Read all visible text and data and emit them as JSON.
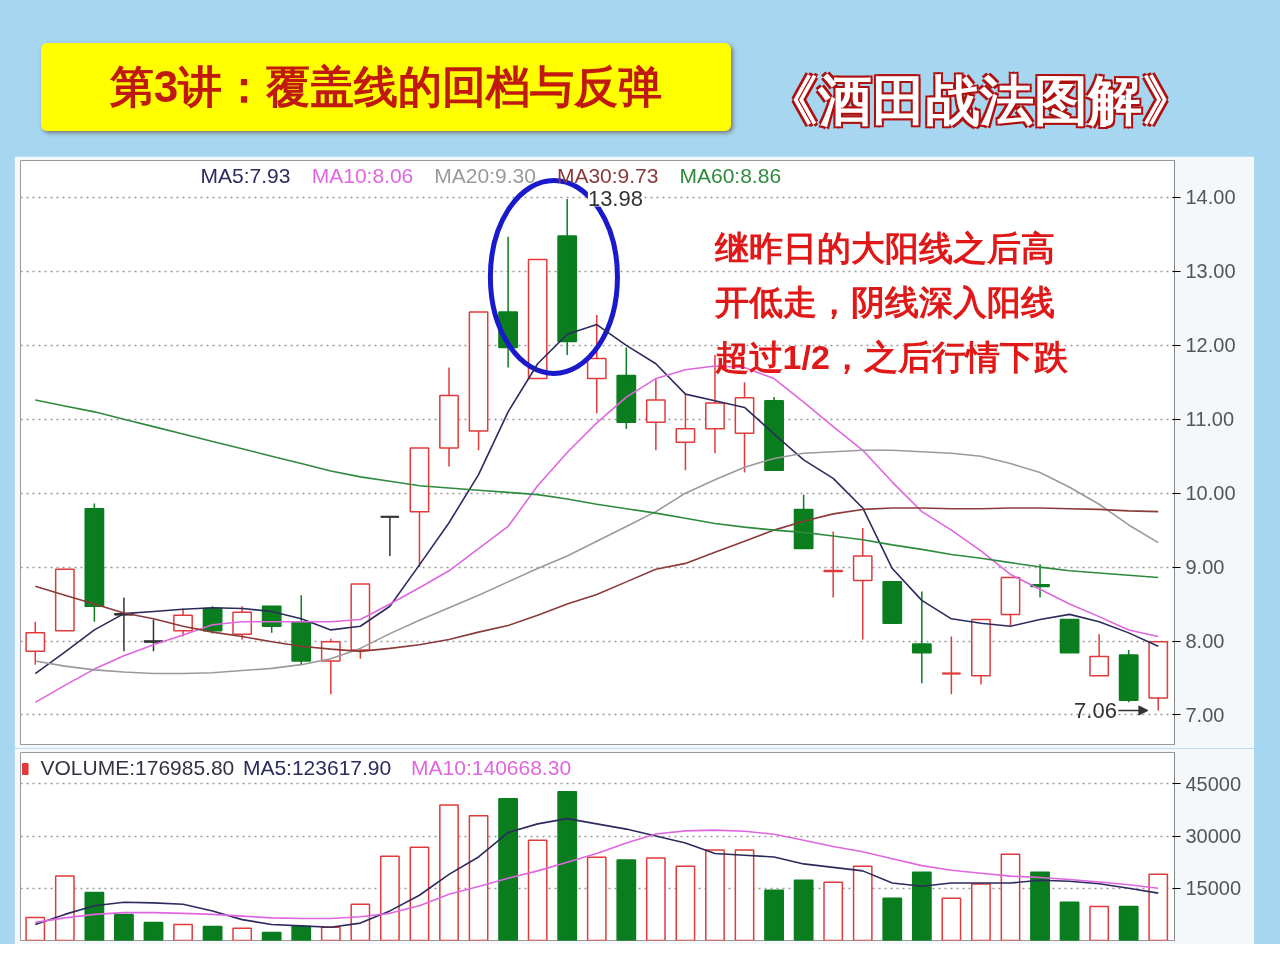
{
  "chart_data": [
    {
      "type": "candlestick",
      "title": "第3讲：覆盖线的回档与反弹",
      "subtitle": "《酒田战法图解》",
      "categories": [
        null,
        null,
        null,
        null,
        null,
        null,
        null,
        null,
        null,
        null,
        null,
        null,
        null,
        null,
        null,
        null,
        null,
        null,
        null,
        null,
        null,
        null,
        null,
        null,
        null,
        null,
        null,
        null,
        null,
        null,
        null,
        null,
        null,
        null,
        null,
        null,
        null,
        null,
        null
      ],
      "ohlc": [
        [
          7.86,
          8.26,
          7.68,
          8.11
        ],
        [
          8.14,
          8.97,
          8.14,
          8.97
        ],
        [
          9.79,
          9.86,
          8.26,
          8.47
        ],
        [
          8.37,
          8.59,
          7.86,
          8.36
        ],
        [
          8.0,
          8.29,
          7.86,
          7.99
        ],
        [
          8.14,
          8.44,
          8.06,
          8.35
        ],
        [
          8.44,
          8.47,
          8.1,
          8.14
        ],
        [
          8.09,
          8.47,
          8.02,
          8.39
        ],
        [
          8.47,
          8.47,
          8.11,
          8.2
        ],
        [
          8.26,
          8.62,
          7.68,
          7.73
        ],
        [
          7.73,
          8.03,
          7.28,
          7.99
        ],
        [
          7.88,
          8.77,
          7.76,
          8.77
        ],
        [
          9.68,
          9.68,
          9.15,
          9.68
        ],
        [
          9.75,
          10.61,
          9.0,
          10.61
        ],
        [
          10.61,
          11.7,
          10.36,
          11.32
        ],
        [
          10.84,
          12.45,
          10.58,
          12.45
        ],
        [
          12.45,
          13.47,
          11.7,
          11.97
        ],
        [
          11.55,
          13.16,
          11.55,
          13.16
        ],
        [
          13.48,
          13.98,
          11.87,
          12.05
        ],
        [
          11.55,
          12.41,
          11.08,
          11.82
        ],
        [
          11.59,
          11.97,
          10.87,
          10.96
        ],
        [
          10.96,
          11.55,
          10.58,
          11.26
        ],
        [
          10.69,
          11.34,
          10.31,
          10.87
        ],
        [
          10.87,
          11.87,
          10.54,
          11.22
        ],
        [
          10.81,
          11.5,
          10.28,
          11.29
        ],
        [
          11.25,
          11.3,
          10.31,
          10.31
        ],
        [
          9.78,
          9.98,
          9.25,
          9.25
        ],
        [
          8.94,
          9.48,
          8.59,
          8.95
        ],
        [
          8.82,
          9.53,
          8.02,
          9.15
        ],
        [
          8.8,
          8.8,
          8.24,
          8.24
        ],
        [
          7.96,
          8.67,
          7.43,
          7.84
        ],
        [
          7.56,
          8.06,
          7.28,
          7.56
        ],
        [
          7.53,
          8.29,
          7.41,
          8.29
        ],
        [
          8.36,
          8.86,
          8.21,
          8.86
        ],
        [
          8.76,
          9.04,
          8.59,
          8.74
        ],
        [
          8.29,
          8.29,
          7.84,
          7.84
        ],
        [
          7.53,
          8.09,
          7.53,
          7.79
        ],
        [
          7.81,
          7.88,
          7.17,
          7.2
        ],
        [
          7.23,
          7.99,
          7.06,
          7.99
        ]
      ],
      "colors": [
        "#e03a3a",
        "#e03a3a",
        "#0a7d1e",
        "#333333",
        "#333333",
        "#e03a3a",
        "#0a7d1e",
        "#e03a3a",
        "#0a7d1e",
        "#0a7d1e",
        "#e03a3a",
        "#e03a3a",
        "#333333",
        "#e03a3a",
        "#e03a3a",
        "#e03a3a",
        "#0a7d1e",
        "#e03a3a",
        "#0a7d1e",
        "#e03a3a",
        "#0a7d1e",
        "#e03a3a",
        "#e03a3a",
        "#e03a3a",
        "#e03a3a",
        "#0a7d1e",
        "#0a7d1e",
        "#e03a3a",
        "#e03a3a",
        "#0a7d1e",
        "#0a7d1e",
        "#e03a3a",
        "#e03a3a",
        "#e03a3a",
        "#0a7d1e",
        "#0a7d1e",
        "#e03a3a",
        "#0a7d1e",
        "#e03a3a"
      ],
      "series": [
        {
          "name": "MA5:7.93",
          "type": "line",
          "color": "#2b2b5e",
          "values": [
            7.56,
            7.85,
            8.15,
            8.37,
            8.4,
            8.43,
            8.45,
            8.44,
            8.4,
            8.3,
            8.15,
            8.2,
            8.47,
            9.03,
            9.6,
            10.25,
            11.1,
            11.75,
            12.15,
            12.28,
            12.0,
            11.75,
            11.34,
            11.25,
            11.16,
            10.8,
            10.45,
            10.2,
            9.8,
            8.98,
            8.55,
            8.3,
            8.24,
            8.2,
            8.29,
            8.36,
            8.26,
            8.11,
            7.93
          ]
        },
        {
          "name": "MA10:8.06",
          "type": "line",
          "color": "#e066e0",
          "values": [
            7.17,
            7.4,
            7.62,
            7.8,
            7.95,
            8.08,
            8.22,
            8.26,
            8.26,
            8.26,
            8.26,
            8.29,
            8.5,
            8.72,
            8.95,
            9.25,
            9.55,
            10.1,
            10.55,
            10.95,
            11.3,
            11.55,
            11.67,
            11.72,
            11.7,
            11.55,
            11.23,
            10.9,
            10.58,
            10.15,
            9.75,
            9.5,
            9.22,
            8.9,
            8.7,
            8.5,
            8.33,
            8.15,
            8.06
          ]
        },
        {
          "name": "MA20:9.30",
          "type": "line",
          "color": "#9a9a9a",
          "values": [
            7.73,
            7.66,
            7.61,
            7.58,
            7.56,
            7.56,
            7.57,
            7.6,
            7.63,
            7.68,
            7.76,
            7.9,
            8.1,
            8.28,
            8.45,
            8.62,
            8.8,
            8.98,
            9.15,
            9.35,
            9.55,
            9.75,
            10.0,
            10.18,
            10.35,
            10.47,
            10.54,
            10.56,
            10.58,
            10.58,
            10.56,
            10.54,
            10.5,
            10.4,
            10.28,
            10.08,
            9.85,
            9.57,
            9.33
          ]
        },
        {
          "name": "MA30:9.73",
          "type": "line",
          "color": "#8b3a3a",
          "values": [
            8.74,
            8.62,
            8.5,
            8.38,
            8.3,
            8.2,
            8.12,
            8.06,
            7.99,
            7.93,
            7.89,
            7.86,
            7.9,
            7.95,
            8.02,
            8.12,
            8.21,
            8.35,
            8.5,
            8.63,
            8.8,
            8.97,
            9.05,
            9.2,
            9.35,
            9.5,
            9.62,
            9.72,
            9.78,
            9.8,
            9.8,
            9.79,
            9.79,
            9.8,
            9.8,
            9.79,
            9.78,
            9.76,
            9.75
          ]
        },
        {
          "name": "MA60:8.86",
          "type": "line",
          "color": "#2e8b3e",
          "values": [
            11.26,
            11.18,
            11.1,
            11.0,
            10.9,
            10.8,
            10.7,
            10.6,
            10.5,
            10.4,
            10.3,
            10.22,
            10.16,
            10.1,
            10.07,
            10.04,
            10.01,
            9.98,
            9.92,
            9.85,
            9.79,
            9.73,
            9.66,
            9.59,
            9.54,
            9.5,
            9.47,
            9.42,
            9.37,
            9.3,
            9.24,
            9.17,
            9.12,
            9.06,
            9.0,
            8.95,
            8.92,
            8.89,
            8.86
          ]
        }
      ],
      "ylim": [
        6.6,
        14.5
      ],
      "yticks": [
        {
          "value": 7,
          "label": "7.00"
        },
        {
          "value": 8,
          "label": "8.00"
        },
        {
          "value": 9,
          "label": "9.00"
        },
        {
          "value": 10,
          "label": "10.00"
        },
        {
          "value": 11,
          "label": "11.00"
        },
        {
          "value": 12,
          "label": "12.00"
        },
        {
          "value": 13,
          "label": "13.00"
        },
        {
          "value": 14,
          "label": "14.00"
        }
      ],
      "grid": "y",
      "legend": "top left",
      "tick_labels": "y",
      "annotations": [
        "继昨日的大阳线之后高",
        "开低走，阴线深入阳线",
        "超过1/2，之后行情下跌",
        "13.98",
        "7.06"
      ]
    },
    {
      "type": "bar",
      "categories": [
        null,
        null,
        null,
        null,
        null,
        null,
        null,
        null,
        null,
        null,
        null,
        null,
        null,
        null,
        null,
        null,
        null,
        null,
        null,
        null,
        null,
        null,
        null,
        null,
        null,
        null,
        null,
        null,
        null,
        null,
        null,
        null,
        null,
        null,
        null,
        null,
        null,
        null,
        null
      ],
      "series": [
        {
          "name": "VOLUME:176985.80",
          "type": "bar",
          "colors": [
            "#e03a3a",
            "#e03a3a",
            "#0a7d1e",
            "#0a7d1e",
            "#0a7d1e",
            "#e03a3a",
            "#0a7d1e",
            "#e03a3a",
            "#0a7d1e",
            "#0a7d1e",
            "#e03a3a",
            "#e03a3a",
            "#e03a3a",
            "#e03a3a",
            "#e03a3a",
            "#e03a3a",
            "#0a7d1e",
            "#e03a3a",
            "#0a7d1e",
            "#e03a3a",
            "#0a7d1e",
            "#e03a3a",
            "#e03a3a",
            "#e03a3a",
            "#e03a3a",
            "#0a7d1e",
            "#0a7d1e",
            "#e03a3a",
            "#e03a3a",
            "#0a7d1e",
            "#0a7d1e",
            "#e03a3a",
            "#e03a3a",
            "#e03a3a",
            "#0a7d1e",
            "#0a7d1e",
            "#e03a3a",
            "#0a7d1e",
            "#e03a3a"
          ],
          "values": [
            6600,
            18500,
            13800,
            7500,
            5200,
            4600,
            4000,
            3500,
            2300,
            4000,
            3800,
            10400,
            24200,
            26800,
            38900,
            35800,
            40700,
            28800,
            42700,
            23900,
            23100,
            23700,
            21300,
            26000,
            26000,
            14400,
            17300,
            16700,
            21300,
            12100,
            19600,
            12100,
            16200,
            24800,
            19600,
            11000,
            9800,
            9800,
            19000
          ]
        },
        {
          "name": "MA5:123617.90",
          "type": "line",
          "color": "#2b2b5e",
          "values": [
            4600,
            7500,
            10000,
            11000,
            10800,
            10400,
            8500,
            6000,
            4600,
            4200,
            3800,
            5000,
            8500,
            13000,
            19000,
            24000,
            31000,
            33500,
            35000,
            33500,
            32000,
            30000,
            28000,
            25000,
            24500,
            24000,
            22000,
            21000,
            20000,
            16500,
            15600,
            16500,
            16500,
            16500,
            17300,
            17000,
            16300,
            15000,
            13600
          ]
        },
        {
          "name": "MA10:140668.30",
          "type": "line",
          "color": "#e066e0",
          "values": [
            5200,
            6500,
            7500,
            8000,
            8000,
            7800,
            7500,
            7000,
            6500,
            6300,
            6300,
            6800,
            7800,
            10000,
            13300,
            15500,
            17900,
            20000,
            22500,
            25000,
            28000,
            30600,
            31500,
            31700,
            31400,
            30500,
            28800,
            27000,
            25500,
            23500,
            21500,
            20200,
            19300,
            18500,
            18100,
            17500,
            16800,
            16000,
            15000
          ]
        }
      ],
      "ylim": [
        0,
        54000
      ],
      "yticks": [
        15000,
        30000,
        45000
      ],
      "grid": "y",
      "legend": "top left",
      "tick_labels": "y"
    }
  ]
}
